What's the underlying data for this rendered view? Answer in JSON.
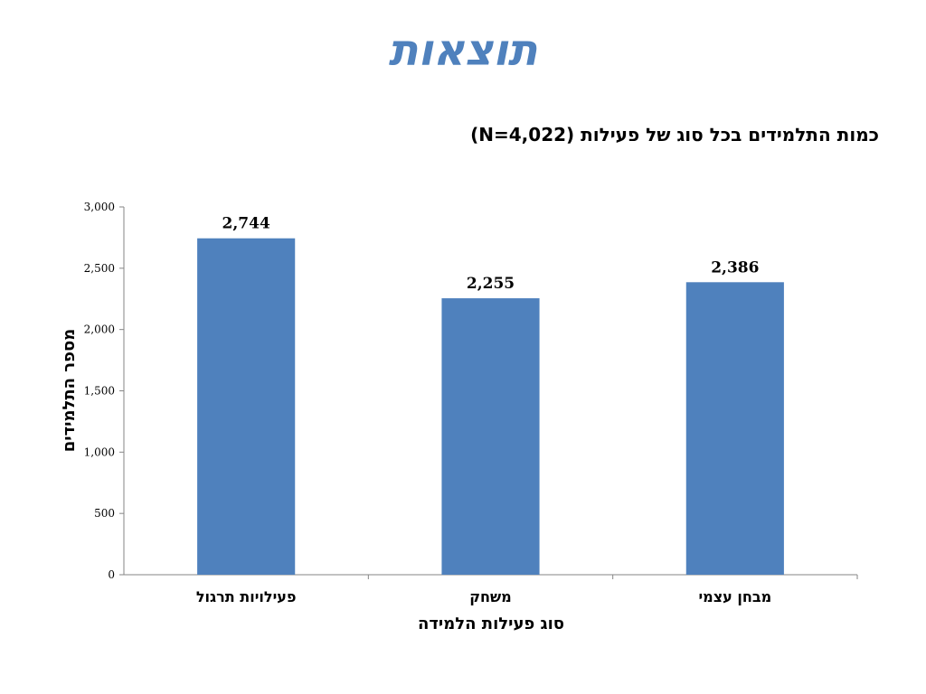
{
  "slide": {
    "title": "תוצאות"
  },
  "chart_data": {
    "type": "bar",
    "title": "כמות התלמידים בכל סוג של פעילות (N=4,022)",
    "xlabel": "סוג פעילות הלמידה",
    "ylabel": "מספר התלמידים",
    "categories": [
      "פעילויות תרגול",
      "משחק",
      "מבחן עצמי"
    ],
    "values": [
      2744,
      2255,
      2386
    ],
    "value_labels": [
      "2,744",
      "2,255",
      "2,386"
    ],
    "ylim": [
      0,
      3000
    ],
    "yticks": [
      0,
      500,
      1000,
      1500,
      2000,
      2500,
      3000
    ],
    "ytick_labels": [
      "0",
      "500",
      "1,000",
      "1,500",
      "2,000",
      "2,500",
      "3,000"
    ],
    "grid": false,
    "legend": "none",
    "bar_color": "#4f81bd"
  }
}
